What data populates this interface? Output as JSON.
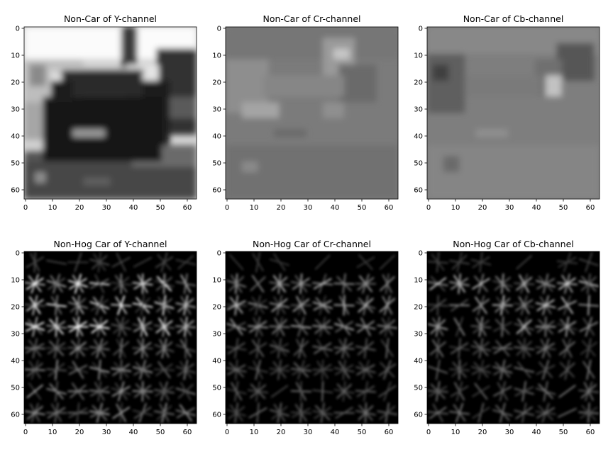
{
  "figure": {
    "panels": [
      {
        "title": "Non-Car of Y-channel",
        "kind": "photo",
        "channel": "Y"
      },
      {
        "title": "Non-Car of Cr-channel",
        "kind": "photo",
        "channel": "Cr"
      },
      {
        "title": "Non-Car of Cb-channel",
        "kind": "photo",
        "channel": "Cb"
      },
      {
        "title": "Non-Hog Car of Y-channel",
        "kind": "hog",
        "channel": "Y"
      },
      {
        "title": "Non-Hog Car of Cr-channel",
        "kind": "hog",
        "channel": "Cr"
      },
      {
        "title": "Non-Hog Car of Cb-channel",
        "kind": "hog",
        "channel": "Cb"
      }
    ]
  },
  "chart_data": {
    "type": "heatmap",
    "colormap": "gray",
    "image_size": [
      64,
      64
    ],
    "xlim": [
      0,
      63
    ],
    "ylim": [
      63,
      0
    ],
    "x_ticks": [
      "0",
      "10",
      "20",
      "30",
      "40",
      "50",
      "60"
    ],
    "y_ticks": [
      "0",
      "10",
      "20",
      "30",
      "40",
      "50",
      "60"
    ],
    "grid": false
  }
}
